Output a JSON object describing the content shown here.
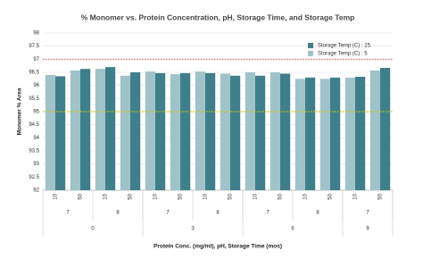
{
  "chart_data": {
    "type": "bar",
    "title": "% Monomer vs. Protein Concentration, pH, Storage Time, and Storage Temp",
    "y_label": "Monomer % Area",
    "x_label": "Protein Conc. (mg/ml), pH, Storage Time (mos)",
    "ylim": [
      92,
      98
    ],
    "yticks": [
      92,
      92.5,
      93,
      93.5,
      94,
      94.5,
      95,
      95.5,
      96,
      96.5,
      97,
      97.5,
      98
    ],
    "grid": true,
    "legend_position": "upper right",
    "reference_lines": [
      {
        "value": 97,
        "color": "#e06666"
      },
      {
        "value": 95,
        "color": "#d6c400"
      }
    ],
    "groups": [
      {
        "label": "0",
        "subgroups": [
          {
            "label": "7",
            "categories": [
              "10",
              "50"
            ]
          },
          {
            "label": "8",
            "categories": [
              "10",
              "50"
            ]
          }
        ]
      },
      {
        "label": "3",
        "subgroups": [
          {
            "label": "7",
            "categories": [
              "10",
              "50"
            ]
          },
          {
            "label": "8",
            "categories": [
              "10",
              "50"
            ]
          }
        ]
      },
      {
        "label": "6",
        "subgroups": [
          {
            "label": "7",
            "categories": [
              "10",
              "50"
            ]
          },
          {
            "label": "8",
            "categories": [
              "10",
              "50"
            ]
          }
        ]
      },
      {
        "label": "9",
        "subgroups": [
          {
            "label": "7",
            "categories": [
              "10",
              "50"
            ]
          }
        ]
      }
    ],
    "series": [
      {
        "name": "Storage Temp (C) : 5",
        "color": "#9fc3c9",
        "values": [
          96.4,
          96.57,
          96.63,
          96.37,
          96.53,
          96.43,
          96.53,
          96.45,
          96.5,
          96.5,
          96.25,
          96.25,
          96.3,
          96.57
        ]
      },
      {
        "name": "Storage Temp (C) : 25",
        "color": "#3e7f8b",
        "values": [
          96.35,
          96.63,
          96.7,
          96.5,
          96.47,
          96.47,
          96.47,
          96.37,
          96.37,
          96.45,
          96.3,
          96.3,
          96.33,
          96.67
        ]
      }
    ]
  }
}
